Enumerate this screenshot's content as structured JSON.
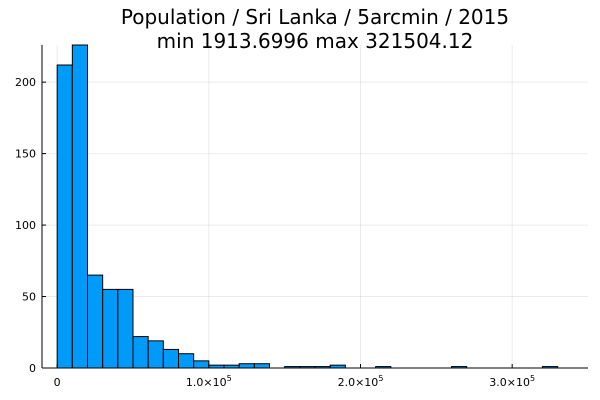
{
  "chart_data": {
    "type": "bar",
    "title": "Population / Sri Lanka / 5arcmin / 2015",
    "subtitle": "min 1913.6996  max 321504.12",
    "xlabel": "",
    "ylabel": "",
    "bin_width": 10000,
    "bins": [
      {
        "x0": 0,
        "x1": 10000,
        "count": 212
      },
      {
        "x0": 10000,
        "x1": 20000,
        "count": 226
      },
      {
        "x0": 20000,
        "x1": 30000,
        "count": 65
      },
      {
        "x0": 30000,
        "x1": 40000,
        "count": 55
      },
      {
        "x0": 40000,
        "x1": 50000,
        "count": 55
      },
      {
        "x0": 50000,
        "x1": 60000,
        "count": 22
      },
      {
        "x0": 60000,
        "x1": 70000,
        "count": 19
      },
      {
        "x0": 70000,
        "x1": 80000,
        "count": 13
      },
      {
        "x0": 80000,
        "x1": 90000,
        "count": 10
      },
      {
        "x0": 90000,
        "x1": 100000,
        "count": 5
      },
      {
        "x0": 100000,
        "x1": 110000,
        "count": 2
      },
      {
        "x0": 110000,
        "x1": 120000,
        "count": 2
      },
      {
        "x0": 120000,
        "x1": 130000,
        "count": 3
      },
      {
        "x0": 130000,
        "x1": 140000,
        "count": 3
      },
      {
        "x0": 150000,
        "x1": 160000,
        "count": 1
      },
      {
        "x0": 160000,
        "x1": 170000,
        "count": 1
      },
      {
        "x0": 170000,
        "x1": 180000,
        "count": 1
      },
      {
        "x0": 180000,
        "x1": 190000,
        "count": 2
      },
      {
        "x0": 210000,
        "x1": 220000,
        "count": 1
      },
      {
        "x0": 260000,
        "x1": 270000,
        "count": 1
      },
      {
        "x0": 320000,
        "x1": 330000,
        "count": 1
      }
    ],
    "xlim": [
      -10000,
      350000
    ],
    "ylim": [
      0,
      226
    ],
    "x_ticks": [
      {
        "value": 0,
        "mantissa": "0",
        "exponent": ""
      },
      {
        "value": 100000,
        "mantissa": "1.0",
        "exponent": "5"
      },
      {
        "value": 200000,
        "mantissa": "2.0",
        "exponent": "5"
      },
      {
        "value": 300000,
        "mantissa": "3.0",
        "exponent": "5"
      }
    ],
    "y_ticks": [
      0,
      50,
      100,
      150,
      200
    ],
    "grid": true,
    "legend": "none",
    "colors": {
      "bar_fill": "#009AF9",
      "bar_stroke": "#000000",
      "grid": "#EBEBEB",
      "axis": "#000000"
    }
  }
}
